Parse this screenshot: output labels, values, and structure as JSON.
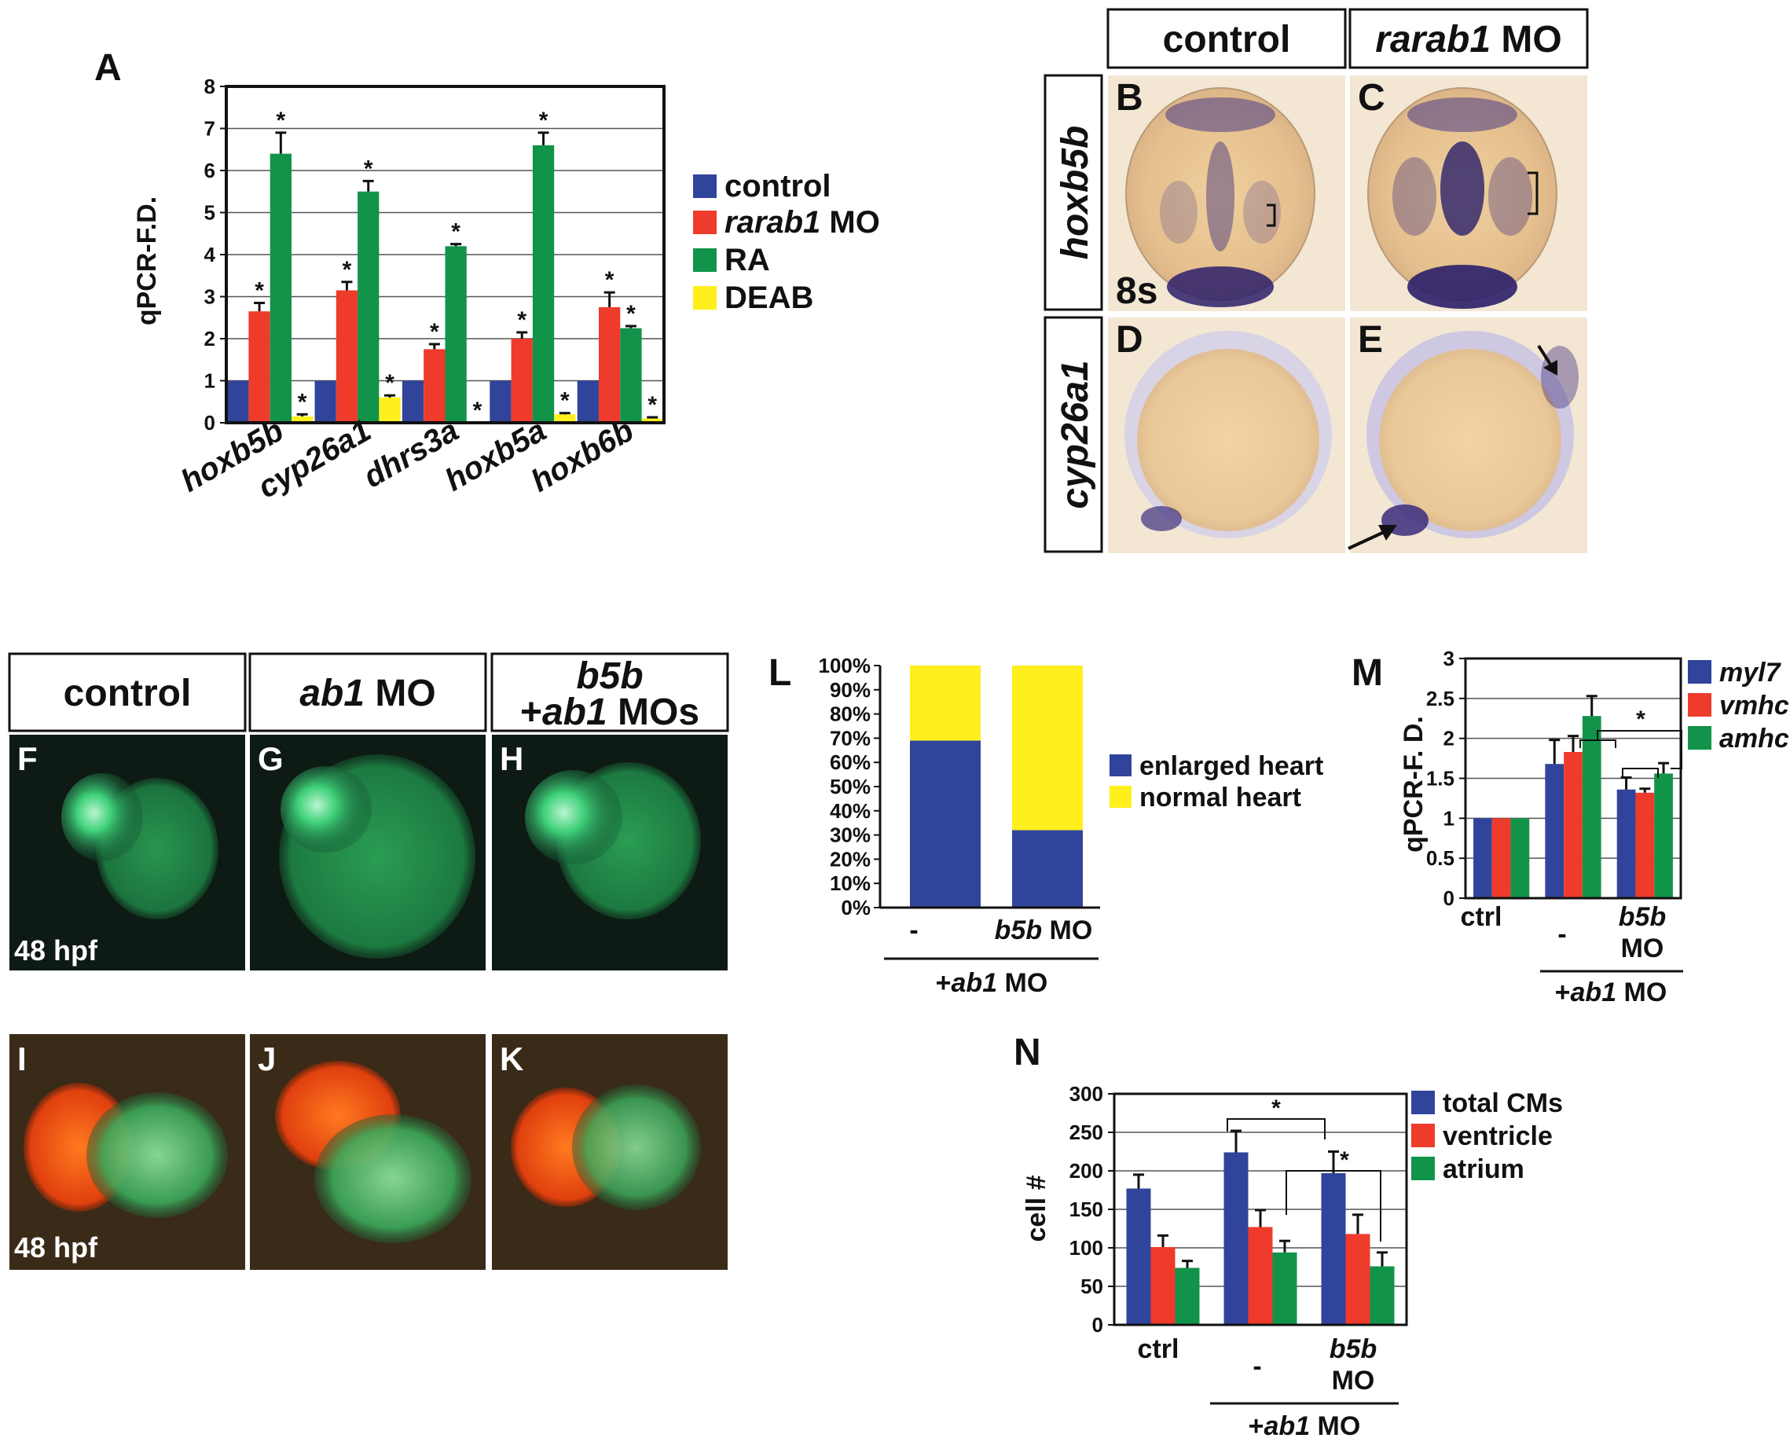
{
  "colors": {
    "blue": "#31449b",
    "red": "#ee3b2b",
    "green": "#12934a",
    "yellow": "#ffef1c",
    "embryo_bg": "#f3e7d3",
    "embryo_body": "#e8c89c",
    "stain": "#3a2b7a",
    "fluor_bg": "#0e1a14",
    "fluor_green": "#3fd07a",
    "fluor_red": "#ff5a1a"
  },
  "panels": {
    "A": "A",
    "B": "B",
    "C": "C",
    "D": "D",
    "E": "E",
    "F": "F",
    "G": "G",
    "H": "H",
    "I": "I",
    "J": "J",
    "K": "K",
    "L": "L",
    "M": "M",
    "N": "N"
  },
  "top_right": {
    "col_control": "control",
    "col_mo_gene": "rarab1",
    "col_mo_suffix": " MO",
    "row_hoxb5b": "hoxb5b",
    "row_cyp26a1": "cyp26a1",
    "stage": "8s"
  },
  "bottom_left": {
    "col_control": "control",
    "col_ab1_gene": "ab1",
    "col_ab1_suffix": " MO",
    "col_b5b_line1": "b5b",
    "col_b5b_line2_prefix": "+",
    "col_b5b_line2_gene": "ab1",
    "col_b5b_line2_suffix": " MOs",
    "stage_F": "48 hpf",
    "stage_I": "48 hpf"
  },
  "chart_data": [
    {
      "id": "A",
      "type": "bar",
      "ylabel": "qPCR-F.D.",
      "ylim": [
        0,
        8
      ],
      "yticks": [
        "0",
        "1",
        "2",
        "3",
        "4",
        "5",
        "6",
        "7",
        "8"
      ],
      "categories": [
        "hoxb5b",
        "cyp26a1",
        "dhrs3a",
        "hoxb5a",
        "hoxb6b"
      ],
      "series": [
        {
          "name": "control",
          "color": "#31449b",
          "values": [
            1,
            1,
            1,
            1,
            1
          ],
          "errors": [
            0,
            0,
            0,
            0,
            0
          ],
          "sig": [
            false,
            false,
            false,
            false,
            false
          ]
        },
        {
          "name": "rarab1 MO",
          "color": "#ee3b2b",
          "values": [
            2.65,
            3.15,
            1.75,
            2.0,
            2.75
          ],
          "errors": [
            0.2,
            0.2,
            0.12,
            0.15,
            0.35
          ],
          "sig": [
            true,
            true,
            true,
            true,
            true
          ]
        },
        {
          "name": "RA",
          "color": "#12934a",
          "values": [
            6.4,
            5.5,
            4.2,
            6.6,
            2.25
          ],
          "errors": [
            0.5,
            0.25,
            0.05,
            0.3,
            0.05
          ],
          "sig": [
            true,
            true,
            true,
            true,
            true
          ]
        },
        {
          "name": "DEAB",
          "color": "#ffef1c",
          "values": [
            0.15,
            0.6,
            0.0,
            0.2,
            0.1
          ],
          "errors": [
            0.05,
            0.05,
            0.0,
            0.03,
            0.03
          ],
          "sig": [
            true,
            true,
            true,
            true,
            true
          ]
        }
      ],
      "legend": {
        "items": [
          {
            "prefix": "",
            "italic": "",
            "text": "control"
          },
          {
            "prefix": "",
            "italic": "rarab1",
            "text": " MO"
          },
          {
            "prefix": "",
            "italic": "",
            "text": "RA"
          },
          {
            "prefix": "",
            "italic": "",
            "text": "DEAB"
          }
        ]
      },
      "asterisk": "*"
    },
    {
      "id": "L",
      "type": "bar",
      "stacked": true,
      "ylim": [
        0,
        100
      ],
      "yticks": [
        "0%",
        "10%",
        "20%",
        "30%",
        "40%",
        "50%",
        "60%",
        "70%",
        "80%",
        "90%",
        "100%"
      ],
      "categories": [
        "-",
        "b5b"
      ],
      "category_suffix": [
        " ",
        " MO"
      ],
      "series": [
        {
          "name": "enlarged heart",
          "color": "#31449b",
          "values": [
            69,
            32
          ]
        },
        {
          "name": "normal heart",
          "color": "#ffef1c",
          "values": [
            31,
            68
          ]
        }
      ],
      "group_label_prefix": "+",
      "group_label_gene": "ab1",
      "group_label_suffix": " MO"
    },
    {
      "id": "M",
      "type": "bar",
      "ylabel": "qPCR-F. D.",
      "ylim": [
        0,
        3
      ],
      "yticks": [
        "0",
        "0.5",
        "1",
        "1.5",
        "2",
        "2.5",
        "3"
      ],
      "categories": [
        "ctrl",
        "-",
        "b5b"
      ],
      "category_line2": [
        "",
        "",
        "MO"
      ],
      "series": [
        {
          "name": "myl7",
          "color": "#31449b",
          "values": [
            1,
            1.68,
            1.36
          ],
          "errors": [
            0,
            0.3,
            0.15
          ]
        },
        {
          "name": "vmhc",
          "color": "#ee3b2b",
          "values": [
            1,
            1.83,
            1.32
          ],
          "errors": [
            0,
            0.2,
            0.05
          ]
        },
        {
          "name": "amhc",
          "color": "#12934a",
          "values": [
            1,
            2.28,
            1.56
          ],
          "errors": [
            0,
            0.25,
            0.13
          ]
        }
      ],
      "group_label_prefix": "+",
      "group_label_gene": "ab1",
      "group_label_suffix": " MO",
      "asterisk": "*"
    },
    {
      "id": "N",
      "type": "bar",
      "ylabel": "cell #",
      "ylim": [
        0,
        300
      ],
      "yticks": [
        "0",
        "50",
        "100",
        "150",
        "200",
        "250",
        "300"
      ],
      "categories": [
        "ctrl",
        "-",
        "b5b"
      ],
      "category_line2": [
        "",
        "",
        "MO"
      ],
      "series": [
        {
          "name": "total CMs",
          "color": "#31449b",
          "values": [
            177,
            224,
            197
          ],
          "errors": [
            18,
            28,
            28
          ]
        },
        {
          "name": "ventricle",
          "color": "#ee3b2b",
          "values": [
            101,
            127,
            118
          ],
          "errors": [
            15,
            22,
            25
          ]
        },
        {
          "name": "atrium",
          "color": "#12934a",
          "values": [
            74,
            94,
            76
          ],
          "errors": [
            9,
            15,
            18
          ]
        }
      ],
      "group_label_prefix": "+",
      "group_label_gene": "ab1",
      "group_label_suffix": " MO",
      "asterisk": "*"
    }
  ]
}
